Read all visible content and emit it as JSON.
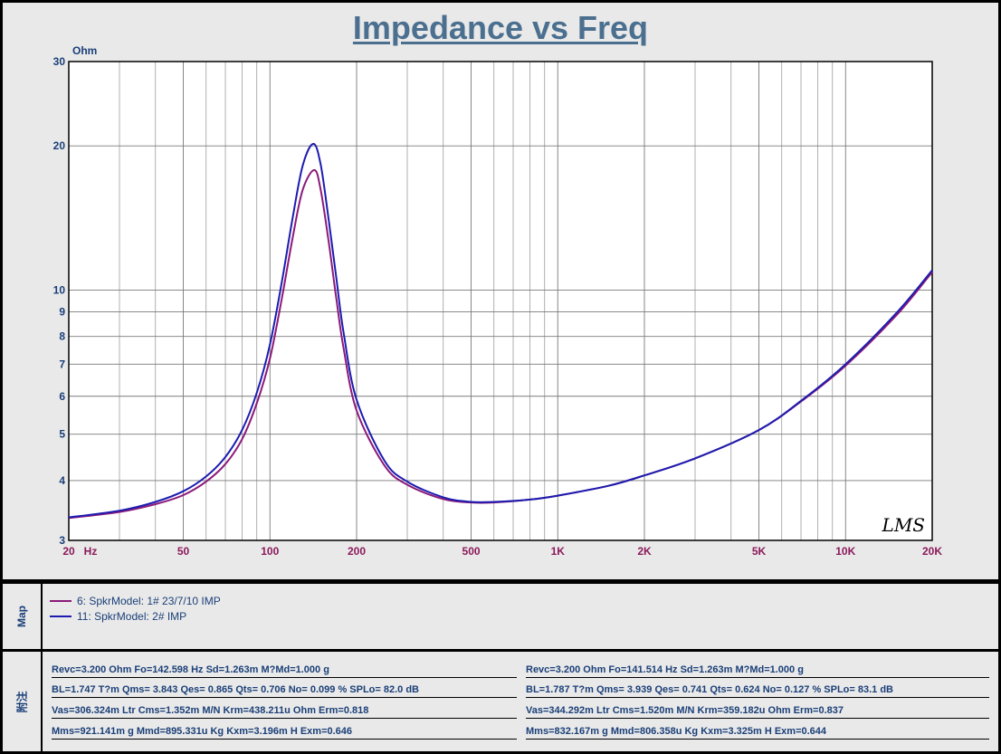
{
  "title": "Impedance vs Freq",
  "chart_data": {
    "type": "line",
    "title": "Impedance vs Freq",
    "ylabel": "Ohm",
    "xlabel": "Hz",
    "x_scale": "log",
    "y_scale": "log",
    "xlim": [
      20,
      20000
    ],
    "ylim": [
      3,
      30
    ],
    "grid": true,
    "y_ticks": [
      "30",
      "20",
      "10",
      "9",
      "8",
      "7",
      "6",
      "5",
      "4",
      "3"
    ],
    "y_tick_values": [
      30,
      20,
      10,
      9,
      8,
      7,
      6,
      5,
      4,
      3
    ],
    "x_ticks": [
      "20",
      "50",
      "100",
      "200",
      "500",
      "1K",
      "2K",
      "5K",
      "10K",
      "20K"
    ],
    "x_tick_values": [
      20,
      50,
      100,
      200,
      500,
      1000,
      2000,
      5000,
      10000,
      20000
    ],
    "series": [
      {
        "name": "6: SpkrModel: 1# 23/7/10 IMP",
        "color": "#8b1a7a",
        "x": [
          20,
          30,
          40,
          50,
          60,
          70,
          80,
          90,
          100,
          110,
          120,
          130,
          142.6,
          150,
          160,
          170,
          180,
          200,
          250,
          300,
          400,
          500,
          600,
          800,
          1000,
          1500,
          2000,
          3000,
          5000,
          7000,
          10000,
          15000,
          20000
        ],
        "y": [
          3.34,
          3.44,
          3.57,
          3.73,
          3.98,
          4.33,
          4.88,
          5.8,
          7.2,
          9.6,
          12.9,
          16.2,
          17.8,
          16.2,
          12.6,
          9.6,
          7.6,
          5.6,
          4.3,
          3.92,
          3.66,
          3.6,
          3.6,
          3.65,
          3.72,
          3.9,
          4.1,
          4.45,
          5.1,
          5.85,
          6.95,
          8.85,
          10.9
        ]
      },
      {
        "name": "11: SpkrModel: 2# IMP",
        "color": "#1c1cb0",
        "x": [
          20,
          30,
          40,
          50,
          60,
          70,
          80,
          90,
          100,
          110,
          120,
          130,
          141.5,
          150,
          160,
          170,
          180,
          200,
          250,
          300,
          400,
          500,
          600,
          800,
          1000,
          1500,
          2000,
          3000,
          5000,
          7000,
          10000,
          15000,
          20000
        ],
        "y": [
          3.35,
          3.46,
          3.61,
          3.8,
          4.08,
          4.48,
          5.1,
          6.1,
          7.7,
          10.4,
          14.2,
          18.2,
          20.2,
          18.3,
          14.0,
          10.6,
          8.2,
          5.9,
          4.4,
          3.98,
          3.69,
          3.61,
          3.61,
          3.65,
          3.72,
          3.9,
          4.1,
          4.45,
          5.1,
          5.87,
          7.0,
          8.95,
          11.0
        ]
      }
    ],
    "watermark": "LMS"
  },
  "map": {
    "label": "Map",
    "entries": [
      {
        "text": "6: SpkrModel: 1# 23/7/10 IMP",
        "color": "#8b1a7a"
      },
      {
        "text": "11: SpkrModel: 2# IMP",
        "color": "#1c1cb0"
      }
    ]
  },
  "notes": {
    "label": "附注",
    "left": [
      "Revc=3.200 Ohm  Fo=142.598 Hz  Sd=1.263m M?Md=1.000 g",
      "BL=1.747 T?m  Qms= 3.843  Qes= 0.865  Qts= 0.706  No= 0.099 %  SPLo= 82.0 dB",
      "Vas=306.324m Ltr  Cms=1.352m M/N  Krm=438.211u Ohm  Erm=0.818",
      "Mms=921.141m g  Mmd=895.331u Kg  Kxm=3.196m H  Exm=0.646"
    ],
    "right": [
      "Revc=3.200 Ohm  Fo=141.514 Hz  Sd=1.263m M?Md=1.000 g",
      "BL=1.787 T?m  Qms= 3.939  Qes= 0.741  Qts= 0.624  No= 0.127 %  SPLo= 83.1 dB",
      "Vas=344.292m Ltr  Cms=1.520m M/N  Krm=359.182u Ohm  Erm=0.837",
      "Mms=832.167m g  Mmd=806.358u Kg  Kxm=3.325m H  Exm=0.644"
    ]
  }
}
